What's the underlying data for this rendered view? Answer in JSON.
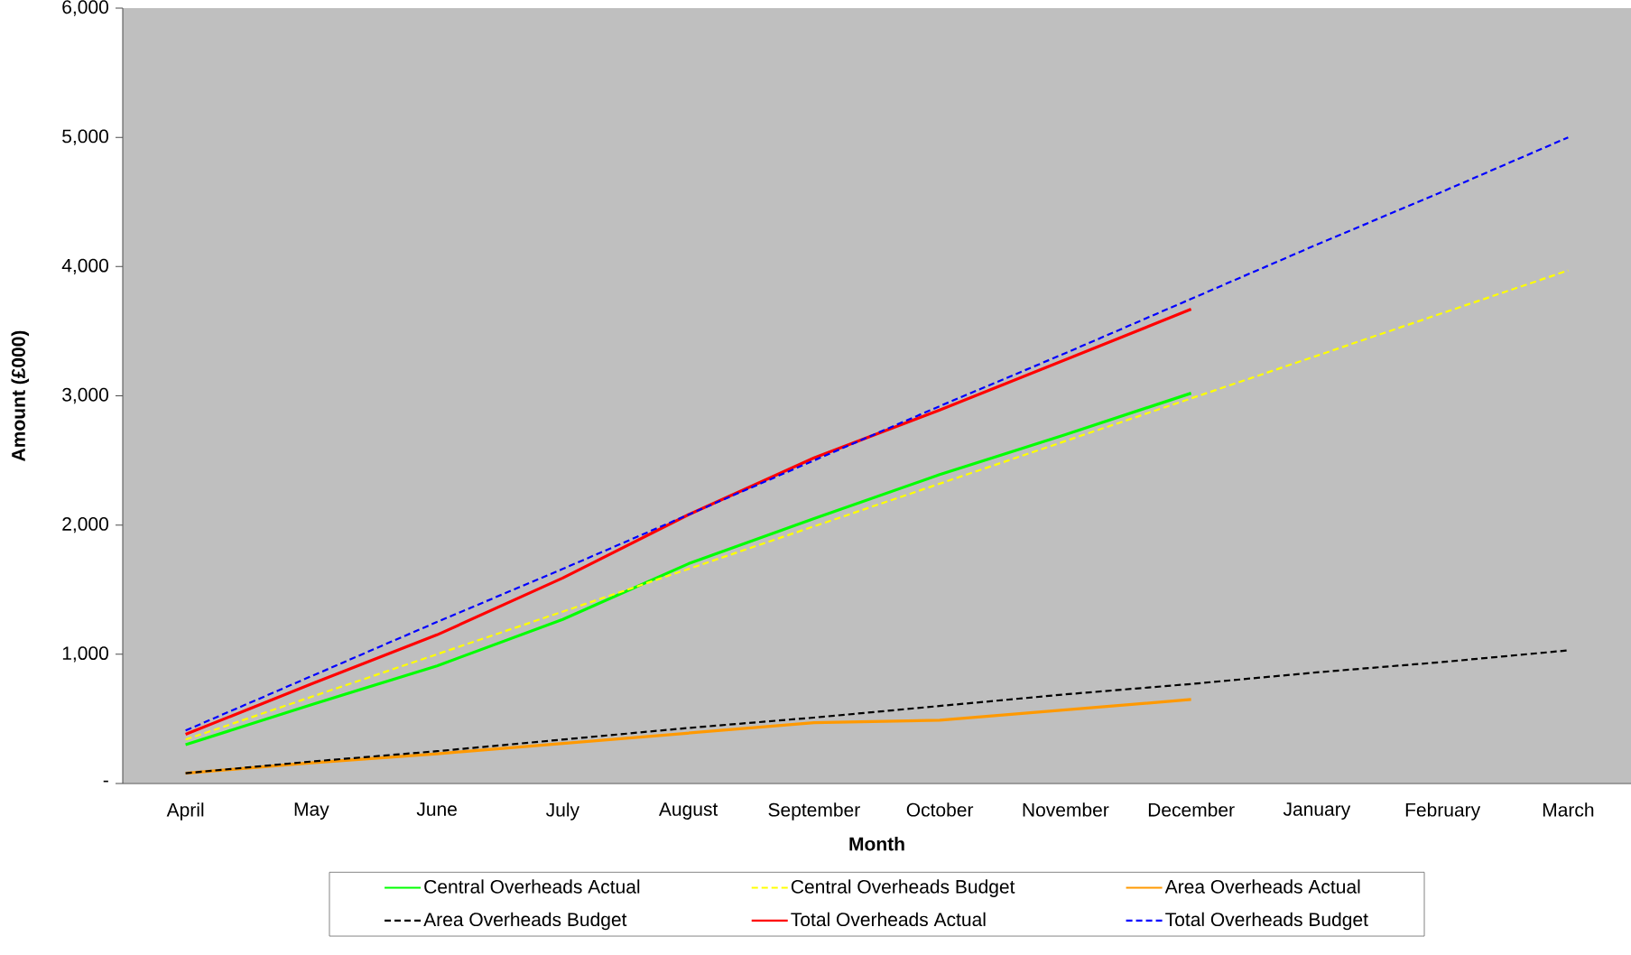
{
  "chart_data": {
    "type": "line",
    "xlabel": "Month",
    "ylabel": "Amount (£000)",
    "categories": [
      "April",
      "May",
      "June",
      "July",
      "August",
      "September",
      "October",
      "November",
      "December",
      "January",
      "February",
      "March"
    ],
    "ylim": [
      0,
      6000
    ],
    "yticks": [
      {
        "value": 0,
        "label": "-"
      },
      {
        "value": 1000,
        "label": "1,000"
      },
      {
        "value": 2000,
        "label": "2,000"
      },
      {
        "value": 3000,
        "label": "3,000"
      },
      {
        "value": 4000,
        "label": "4,000"
      },
      {
        "value": 5000,
        "label": "5,000"
      },
      {
        "value": 6000,
        "label": "6,000"
      }
    ],
    "grid": false,
    "legend": "bottom",
    "marker": "none",
    "series": [
      {
        "name": "Central Overheads Actual",
        "color": "#00ff00",
        "line_style": "solid",
        "values": [
          300,
          610,
          910,
          1270,
          1700,
          2050,
          2390,
          2700,
          3020,
          null,
          null,
          null
        ]
      },
      {
        "name": "Central Overheads Budget",
        "color": "#ffff00",
        "line_style": "dashed",
        "values": [
          340,
          670,
          1000,
          1330,
          1660,
          1990,
          2320,
          2650,
          2980,
          3310,
          3640,
          3970
        ]
      },
      {
        "name": "Area Overheads Actual",
        "color": "#ff9900",
        "line_style": "solid",
        "values": [
          80,
          160,
          230,
          310,
          390,
          470,
          490,
          570,
          650,
          null,
          null,
          null
        ]
      },
      {
        "name": "Area Overheads Budget",
        "color": "#000000",
        "line_style": "dashed",
        "values": [
          80,
          170,
          250,
          340,
          430,
          510,
          600,
          690,
          770,
          860,
          940,
          1030
        ]
      },
      {
        "name": "Total Overheads Actual",
        "color": "#ff0000",
        "line_style": "solid",
        "values": [
          380,
          770,
          1150,
          1590,
          2080,
          2520,
          2890,
          3280,
          3670,
          null,
          null,
          null
        ]
      },
      {
        "name": "Total Overheads Budget",
        "color": "#0000ff",
        "line_style": "dashed",
        "values": [
          410,
          830,
          1250,
          1660,
          2080,
          2500,
          2920,
          3330,
          3750,
          4170,
          4580,
          5000
        ]
      }
    ]
  }
}
